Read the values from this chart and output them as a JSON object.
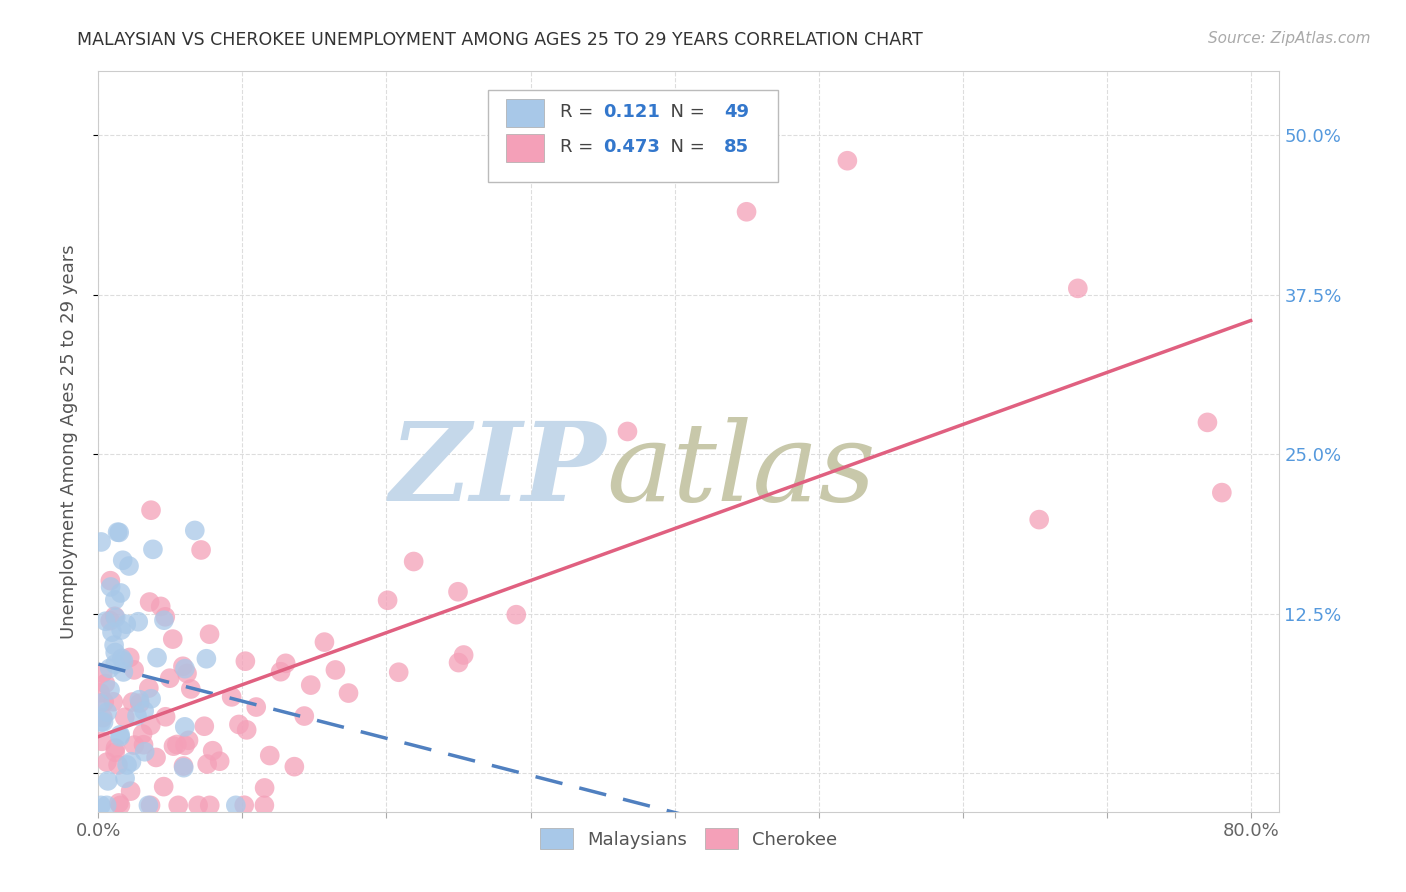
{
  "title": "MALAYSIAN VS CHEROKEE UNEMPLOYMENT AMONG AGES 25 TO 29 YEARS CORRELATION CHART",
  "source": "Source: ZipAtlas.com",
  "ylabel": "Unemployment Among Ages 25 to 29 years",
  "xlim": [
    0.0,
    0.82
  ],
  "ylim": [
    -0.03,
    0.55
  ],
  "xtick_positions": [
    0.0,
    0.1,
    0.2,
    0.3,
    0.4,
    0.5,
    0.6,
    0.7,
    0.8
  ],
  "xticklabels": [
    "0.0%",
    "",
    "",
    "",
    "",
    "",
    "",
    "",
    "80.0%"
  ],
  "ytick_positions": [
    0.0,
    0.125,
    0.25,
    0.375,
    0.5
  ],
  "ytick_labels": [
    "",
    "12.5%",
    "25.0%",
    "37.5%",
    "50.0%"
  ],
  "malaysian_R": 0.121,
  "malaysian_N": 49,
  "cherokee_R": 0.473,
  "cherokee_N": 85,
  "malaysian_color": "#a8c8e8",
  "cherokee_color": "#f4a0b8",
  "malaysian_line_color": "#5080c0",
  "cherokee_line_color": "#e06080",
  "background_color": "#ffffff",
  "grid_color": "#dddddd",
  "zip_color": "#c5d8ea",
  "atlas_color": "#c8c8aa"
}
